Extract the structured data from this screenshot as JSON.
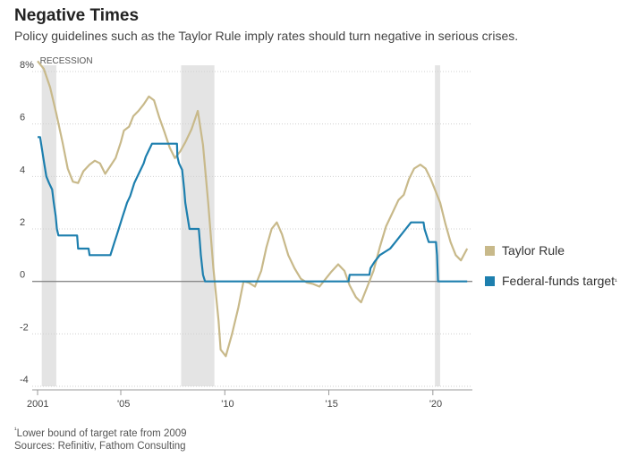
{
  "title": "Negative Times",
  "subtitle": "Policy guidelines such as the Taylor Rule imply rates should turn negative in serious crises.",
  "footnote_mark": "¹",
  "footnote": "Lower bound of target rate from 2009",
  "sources": "Sources: Refinitiv, Fathom Consulting",
  "colors": {
    "taylor": "#c8b98a",
    "fed": "#1d7fae",
    "recession": "#e4e4e4",
    "zero_line": "#888888",
    "grid": "#d0d0d0"
  },
  "chart_data": {
    "type": "line",
    "xlim": [
      2001.0,
      2021.9
    ],
    "ylim": [
      -4,
      8
    ],
    "y_ticks": [
      8,
      6,
      4,
      2,
      0,
      -2,
      -4
    ],
    "y_tick_labels": [
      "8%",
      "6",
      "4",
      "2",
      "0",
      "-2",
      "-4"
    ],
    "x_ticks": [
      2001,
      2005,
      2010,
      2015,
      2020
    ],
    "x_tick_labels": [
      "2001",
      "'05",
      "'10",
      "'15",
      "'20"
    ],
    "grid": "horizontal",
    "legend_position": "right",
    "recession_label": "RECESSION",
    "recessions": [
      [
        2001.2,
        2001.9
      ],
      [
        2007.9,
        2009.5
      ],
      [
        2020.1,
        2020.35
      ]
    ],
    "series": [
      {
        "name": "Taylor Rule",
        "key": "taylor",
        "points": [
          [
            2001.0,
            8.4
          ],
          [
            2001.3,
            8.1
          ],
          [
            2001.6,
            7.4
          ],
          [
            2001.9,
            6.4
          ],
          [
            2002.2,
            5.3
          ],
          [
            2002.45,
            4.3
          ],
          [
            2002.7,
            3.8
          ],
          [
            2002.95,
            3.75
          ],
          [
            2003.2,
            4.2
          ],
          [
            2003.5,
            4.45
          ],
          [
            2003.75,
            4.6
          ],
          [
            2004.0,
            4.5
          ],
          [
            2004.25,
            4.1
          ],
          [
            2004.5,
            4.4
          ],
          [
            2004.75,
            4.7
          ],
          [
            2005.0,
            5.3
          ],
          [
            2005.15,
            5.75
          ],
          [
            2005.4,
            5.9
          ],
          [
            2005.6,
            6.3
          ],
          [
            2005.85,
            6.5
          ],
          [
            2006.1,
            6.75
          ],
          [
            2006.35,
            7.05
          ],
          [
            2006.6,
            6.9
          ],
          [
            2006.85,
            6.25
          ],
          [
            2007.1,
            5.7
          ],
          [
            2007.35,
            5.1
          ],
          [
            2007.6,
            4.7
          ],
          [
            2007.85,
            4.95
          ],
          [
            2008.1,
            5.3
          ],
          [
            2008.4,
            5.8
          ],
          [
            2008.7,
            6.5
          ],
          [
            2008.95,
            5.2
          ],
          [
            2009.2,
            3.0
          ],
          [
            2009.45,
            0.5
          ],
          [
            2009.7,
            -1.5
          ],
          [
            2009.8,
            -2.6
          ],
          [
            2010.05,
            -2.85
          ],
          [
            2010.35,
            -2.0
          ],
          [
            2010.65,
            -1.0
          ],
          [
            2010.9,
            0.0
          ],
          [
            2011.15,
            -0.05
          ],
          [
            2011.45,
            -0.2
          ],
          [
            2011.75,
            0.4
          ],
          [
            2012.0,
            1.3
          ],
          [
            2012.25,
            2.0
          ],
          [
            2012.5,
            2.25
          ],
          [
            2012.75,
            1.8
          ],
          [
            2013.05,
            1.0
          ],
          [
            2013.35,
            0.5
          ],
          [
            2013.65,
            0.1
          ],
          [
            2013.95,
            -0.05
          ],
          [
            2014.25,
            -0.1
          ],
          [
            2014.55,
            -0.2
          ],
          [
            2014.85,
            0.1
          ],
          [
            2015.1,
            0.35
          ],
          [
            2015.45,
            0.65
          ],
          [
            2015.75,
            0.4
          ],
          [
            2016.0,
            -0.15
          ],
          [
            2016.3,
            -0.6
          ],
          [
            2016.55,
            -0.8
          ],
          [
            2016.85,
            -0.2
          ],
          [
            2017.15,
            0.4
          ],
          [
            2017.45,
            1.3
          ],
          [
            2017.75,
            2.1
          ],
          [
            2018.05,
            2.6
          ],
          [
            2018.35,
            3.1
          ],
          [
            2018.6,
            3.3
          ],
          [
            2018.85,
            3.9
          ],
          [
            2019.1,
            4.3
          ],
          [
            2019.4,
            4.45
          ],
          [
            2019.65,
            4.3
          ],
          [
            2019.9,
            3.9
          ],
          [
            2020.15,
            3.4
          ],
          [
            2020.35,
            3.0
          ],
          [
            2020.6,
            2.2
          ],
          [
            2020.85,
            1.5
          ],
          [
            2021.1,
            1.0
          ],
          [
            2021.35,
            0.8
          ],
          [
            2021.65,
            1.25
          ]
        ]
      },
      {
        "name": "Federal-funds target",
        "name_mark": "¹",
        "key": "fed",
        "points": [
          [
            2001.0,
            5.5
          ],
          [
            2001.12,
            5.5
          ],
          [
            2001.22,
            5.0
          ],
          [
            2001.32,
            4.5
          ],
          [
            2001.42,
            4.0
          ],
          [
            2001.55,
            3.75
          ],
          [
            2001.7,
            3.5
          ],
          [
            2001.78,
            3.0
          ],
          [
            2001.87,
            2.5
          ],
          [
            2001.93,
            2.0
          ],
          [
            2002.0,
            1.75
          ],
          [
            2002.9,
            1.75
          ],
          [
            2002.95,
            1.25
          ],
          [
            2003.45,
            1.25
          ],
          [
            2003.5,
            1.0
          ],
          [
            2004.5,
            1.0
          ],
          [
            2004.6,
            1.25
          ],
          [
            2004.7,
            1.5
          ],
          [
            2004.8,
            1.75
          ],
          [
            2004.9,
            2.0
          ],
          [
            2005.0,
            2.25
          ],
          [
            2005.1,
            2.5
          ],
          [
            2005.2,
            2.75
          ],
          [
            2005.3,
            3.0
          ],
          [
            2005.45,
            3.25
          ],
          [
            2005.55,
            3.5
          ],
          [
            2005.65,
            3.75
          ],
          [
            2005.8,
            4.0
          ],
          [
            2005.95,
            4.25
          ],
          [
            2006.1,
            4.5
          ],
          [
            2006.2,
            4.75
          ],
          [
            2006.35,
            5.0
          ],
          [
            2006.5,
            5.25
          ],
          [
            2007.7,
            5.25
          ],
          [
            2007.72,
            4.75
          ],
          [
            2007.8,
            4.5
          ],
          [
            2007.95,
            4.25
          ],
          [
            2008.05,
            3.5
          ],
          [
            2008.1,
            3.0
          ],
          [
            2008.25,
            2.25
          ],
          [
            2008.3,
            2.0
          ],
          [
            2008.75,
            2.0
          ],
          [
            2008.8,
            1.5
          ],
          [
            2008.85,
            1.0
          ],
          [
            2008.95,
            0.25
          ],
          [
            2009.05,
            0.0
          ],
          [
            2015.95,
            0.0
          ],
          [
            2016.0,
            0.25
          ],
          [
            2016.95,
            0.25
          ],
          [
            2017.0,
            0.5
          ],
          [
            2017.2,
            0.75
          ],
          [
            2017.45,
            1.0
          ],
          [
            2017.95,
            1.25
          ],
          [
            2018.2,
            1.5
          ],
          [
            2018.45,
            1.75
          ],
          [
            2018.7,
            2.0
          ],
          [
            2018.95,
            2.25
          ],
          [
            2019.55,
            2.25
          ],
          [
            2019.6,
            2.0
          ],
          [
            2019.7,
            1.75
          ],
          [
            2019.8,
            1.5
          ],
          [
            2020.15,
            1.5
          ],
          [
            2020.2,
            1.0
          ],
          [
            2020.25,
            0.0
          ],
          [
            2021.65,
            0.0
          ]
        ]
      }
    ]
  }
}
